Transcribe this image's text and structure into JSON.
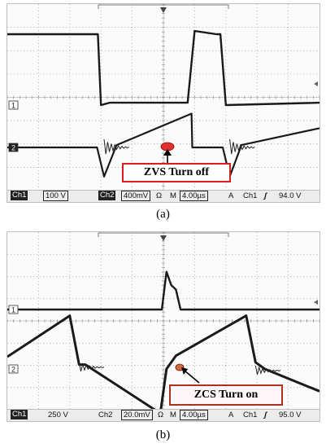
{
  "chart_data": [
    {
      "type": "line",
      "title": "",
      "caption": "(a)",
      "annotation": "ZVS Turn off",
      "grid": true,
      "divisions": {
        "x": 10,
        "y": 8
      },
      "x_unit": "µs",
      "time_per_div_us": 4.0,
      "xlim_us": [
        0,
        40
      ],
      "series": [
        {
          "channel_marker": "1",
          "volts_per_div": 100,
          "unit": "V",
          "x_us": [
            0,
            11.6,
            12.0,
            13.1,
            18.0,
            23.1,
            24.0,
            26.8,
            27.3,
            28.0,
            40
          ],
          "y_v": [
            304,
            304,
            0,
            10,
            10,
            10,
            318,
            304,
            304,
            0,
            10
          ]
        },
        {
          "channel_marker": "2",
          "volts_per_div_mv": 400,
          "unit": "mV",
          "x_us": [
            0,
            11.5,
            12.4,
            14.0,
            23.6,
            23.7,
            27.6,
            28.5,
            30.0,
            40
          ],
          "y_mv": [
            0,
            0,
            -500,
            40,
            580,
            0,
            0,
            -500,
            40,
            330
          ]
        }
      ],
      "statusbar": {
        "ch1_label": "Ch1",
        "ch1_scale": "100 V",
        "ch2_label": "Ch2",
        "ch2_scale": "400mV",
        "ch2_unit_glyph": "Ω",
        "mode": "M",
        "timebase": "4.00µs",
        "acq": "A",
        "trig_src": "Ch1",
        "trig_glyph": "ʃ",
        "trig_level": "94.0 V"
      }
    },
    {
      "type": "line",
      "title": "",
      "caption": "(b)",
      "annotation": "ZCS Turn on",
      "grid": true,
      "divisions": {
        "x": 10,
        "y": 8
      },
      "x_unit": "µs",
      "time_per_div_us": 4.0,
      "xlim_us": [
        0,
        40
      ],
      "series": [
        {
          "channel_marker": "1",
          "volts_per_div": 250,
          "unit": "V",
          "x_us": [
            0,
            19.8,
            20.4,
            21.0,
            21.6,
            22.2,
            40
          ],
          "y_v": [
            0,
            0,
            425,
            275,
            225,
            0,
            0
          ]
        },
        {
          "channel_marker": "2",
          "volts_per_div_mv": 20.0,
          "unit": "mV",
          "x_us": [
            0,
            8.0,
            9.2,
            10.0,
            19.6,
            20.4,
            21.6,
            30.6,
            31.8,
            33.0,
            40
          ],
          "y_mv": [
            11,
            48,
            4,
            4,
            -40,
            0,
            12,
            48,
            6,
            0,
            -20
          ]
        }
      ],
      "statusbar": {
        "ch1_label": "Ch1",
        "ch1_scale": "250 V",
        "ch2_label": "Ch2",
        "ch2_scale": "20.0mV",
        "ch2_unit_glyph": "Ω",
        "mode": "M",
        "timebase": "4.00µs",
        "acq": "A",
        "trig_src": "Ch1",
        "trig_glyph": "ʃ",
        "trig_level": "95.0 V"
      }
    }
  ]
}
